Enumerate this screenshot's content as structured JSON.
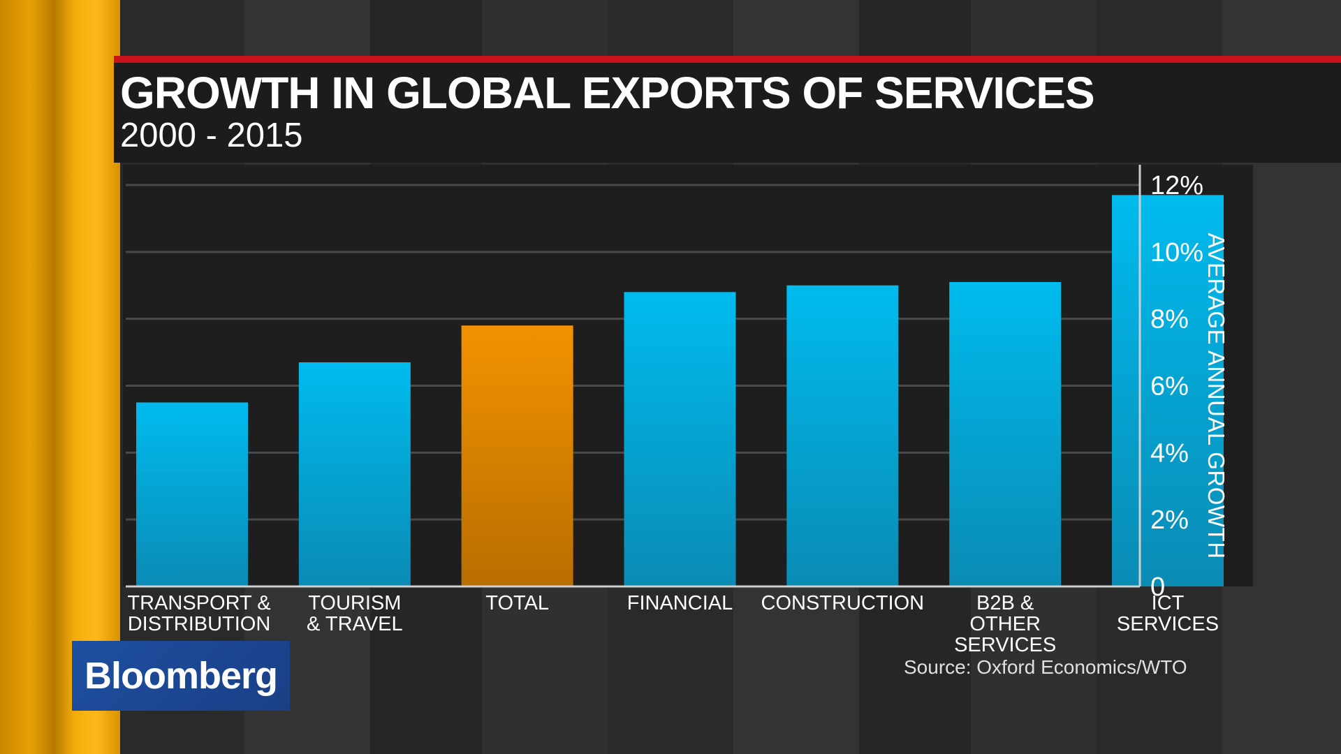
{
  "brand": {
    "logo_text": "Bloomberg"
  },
  "colors": {
    "bar_default": "#00b4e6",
    "bar_highlight": "#ee8a00",
    "header_accent": "#c8121a",
    "side_strip": "#f2ad0b"
  },
  "chart_data": {
    "type": "bar",
    "title": "GROWTH IN GLOBAL EXPORTS OF SERVICES",
    "subtitle": "2000 - 2015",
    "xlabel": "",
    "ylabel": "AVERAGE ANNUAL GROWTH",
    "y_axis_side": "right",
    "ylim": [
      0,
      12
    ],
    "y_ticks": [
      {
        "value": 0,
        "label": "0"
      },
      {
        "value": 2,
        "label": "2%"
      },
      {
        "value": 4,
        "label": "4%"
      },
      {
        "value": 6,
        "label": "6%"
      },
      {
        "value": 8,
        "label": "8%"
      },
      {
        "value": 10,
        "label": "10%"
      },
      {
        "value": 12,
        "label": "12%"
      }
    ],
    "grid": true,
    "categories": [
      [
        "TRANSPORT &",
        "DISTRIBUTION"
      ],
      [
        "TOURISM",
        "& TRAVEL"
      ],
      [
        "TOTAL"
      ],
      [
        "FINANCIAL"
      ],
      [
        "CONSTRUCTION"
      ],
      [
        "B2B &",
        "OTHER",
        "SERVICES"
      ],
      [
        "ICT",
        "SERVICES"
      ]
    ],
    "values": [
      5.5,
      6.7,
      7.8,
      8.8,
      9.0,
      9.1,
      11.7
    ],
    "highlight_index": 2
  },
  "footer": {
    "source": "Source: Oxford Economics/WTO"
  }
}
